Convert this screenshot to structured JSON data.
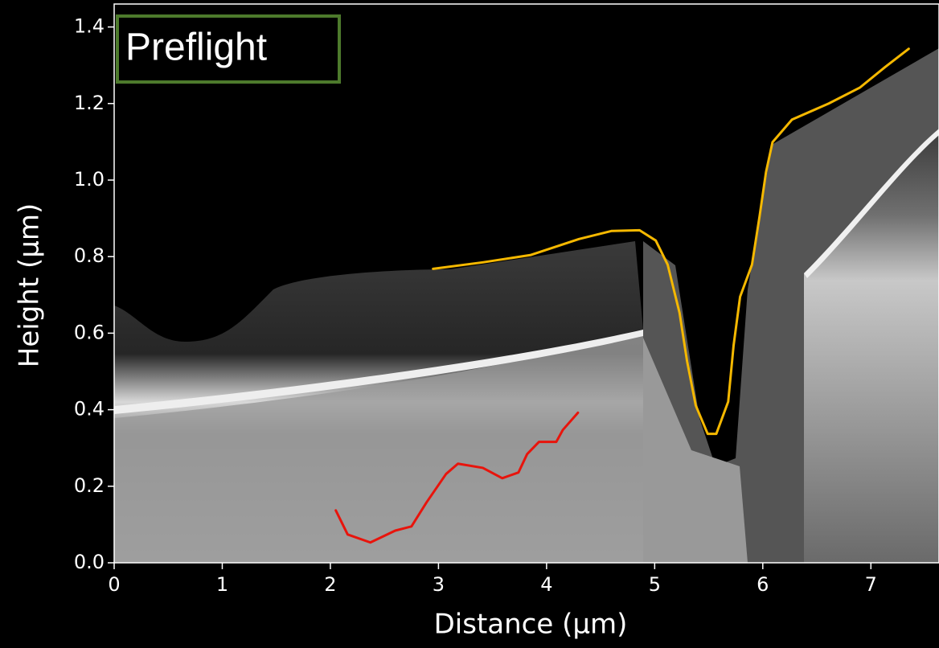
{
  "chart_data": {
    "type": "line",
    "annotation": "Preflight",
    "x_label": "Distance (μm)",
    "y_label": "Height (μm)",
    "xlim": [
      0,
      7.63
    ],
    "ylim": [
      0,
      1.46
    ],
    "xticks": [
      0,
      1,
      2,
      3,
      4,
      5,
      6,
      7
    ],
    "yticks": [
      {
        "value": 0,
        "label": "0.0"
      },
      0.2,
      0.4,
      0.6,
      0.8,
      {
        "value": 1,
        "label": "1.0"
      },
      1.2,
      1.4
    ],
    "series": [
      {
        "color": "#f5b800",
        "x": [
          2.95,
          3.41,
          3.85,
          4.3,
          4.6,
          4.86,
          5.01,
          5.12,
          5.23,
          5.3,
          5.38,
          5.49,
          5.57,
          5.68,
          5.73,
          5.79,
          5.9,
          5.97,
          6.03,
          6.09,
          6.27,
          6.61,
          6.9,
          7.13,
          7.35
        ],
        "values": [
          0.768,
          0.785,
          0.804,
          0.846,
          0.867,
          0.869,
          0.842,
          0.779,
          0.653,
          0.526,
          0.411,
          0.337,
          0.337,
          0.421,
          0.568,
          0.695,
          0.779,
          0.905,
          1.021,
          1.099,
          1.158,
          1.2,
          1.242,
          1.295,
          1.343
        ]
      },
      {
        "color": "#e8140c",
        "x": [
          2.05,
          2.16,
          2.37,
          2.6,
          2.75,
          2.89,
          3.07,
          3.18,
          3.41,
          3.59,
          3.74,
          3.82,
          3.93,
          4.09,
          4.15,
          4.29
        ],
        "values": [
          0.137,
          0.074,
          0.053,
          0.084,
          0.095,
          0.158,
          0.232,
          0.259,
          0.248,
          0.221,
          0.236,
          0.284,
          0.316,
          0.316,
          0.347,
          0.392
        ]
      }
    ]
  }
}
